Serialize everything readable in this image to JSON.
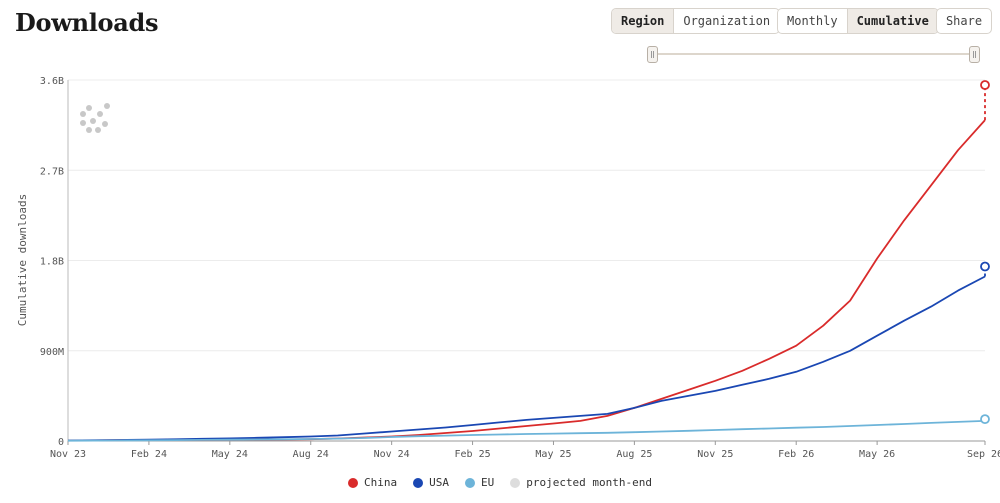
{
  "header": {
    "title": "Downloads"
  },
  "controls": {
    "group_by": [
      {
        "label": "Region",
        "active": true
      },
      {
        "label": "Organization",
        "active": false
      }
    ],
    "mode": [
      {
        "label": "Monthly",
        "active": false
      },
      {
        "label": "Cumulative",
        "active": true
      }
    ],
    "share_label": "Share"
  },
  "range_slider": {
    "start": 0,
    "end": 1
  },
  "chart_data": {
    "type": "line",
    "title": "",
    "xlabel": "",
    "ylabel": "Cumulative downloads",
    "x_ticks": [
      "Nov 23",
      "Feb 24",
      "May 24",
      "Aug 24",
      "Nov 24",
      "Feb 25",
      "May 25",
      "Aug 25",
      "Nov 25",
      "Feb 26",
      "May 26",
      "Sep 26"
    ],
    "y_ticks": [
      "0",
      "900M",
      "1.8B",
      "2.7B",
      "3.6B"
    ],
    "y_tick_values": [
      0,
      900000000,
      1800000000,
      2700000000,
      3600000000
    ],
    "ylim": [
      0,
      3600000000
    ],
    "x_range": [
      "2023-11",
      "2026-09"
    ],
    "grid": true,
    "legend_position": "bottom",
    "x": [
      "2023-11",
      "2023-12",
      "2024-01",
      "2024-02",
      "2024-03",
      "2024-04",
      "2024-05",
      "2024-06",
      "2024-07",
      "2024-08",
      "2024-09",
      "2024-10",
      "2024-11",
      "2024-12",
      "2025-01",
      "2025-02",
      "2025-03",
      "2025-04",
      "2025-05",
      "2025-06",
      "2025-07",
      "2025-08",
      "2025-09",
      "2025-10",
      "2025-11",
      "2025-12",
      "2026-01",
      "2026-02",
      "2026-03",
      "2026-04",
      "2026-05",
      "2026-06",
      "2026-07",
      "2026-08",
      "2026-09"
    ],
    "series": [
      {
        "name": "China",
        "color": "#d92b2b",
        "values": [
          5000000,
          6000000,
          8000000,
          10000000,
          11000000,
          12000000,
          13000000,
          14000000,
          15000000,
          18000000,
          25000000,
          35000000,
          45000000,
          60000000,
          80000000,
          100000000,
          125000000,
          150000000,
          175000000,
          200000000,
          250000000,
          330000000,
          420000000,
          510000000,
          600000000,
          700000000,
          820000000,
          950000000,
          1150000000,
          1400000000,
          1820000000,
          2200000000,
          2550000000,
          2900000000,
          3200000000
        ],
        "projected": 3550000000
      },
      {
        "name": "USA",
        "color": "#1a47b3",
        "values": [
          5000000,
          7000000,
          10000000,
          13000000,
          17000000,
          22000000,
          26000000,
          32000000,
          38000000,
          45000000,
          55000000,
          75000000,
          95000000,
          115000000,
          135000000,
          160000000,
          185000000,
          210000000,
          230000000,
          250000000,
          270000000,
          330000000,
          400000000,
          450000000,
          500000000,
          560000000,
          620000000,
          690000000,
          790000000,
          900000000,
          1050000000,
          1200000000,
          1340000000,
          1500000000,
          1640000000
        ],
        "projected": 1740000000
      },
      {
        "name": "EU",
        "color": "#6db4d9",
        "values": [
          3000000,
          4000000,
          5000000,
          7000000,
          9000000,
          11000000,
          13000000,
          15000000,
          17000000,
          20000000,
          24000000,
          30000000,
          40000000,
          48000000,
          54000000,
          60000000,
          65000000,
          70000000,
          74000000,
          78000000,
          82000000,
          88000000,
          95000000,
          102000000,
          110000000,
          118000000,
          125000000,
          133000000,
          140000000,
          150000000,
          160000000,
          170000000,
          180000000,
          190000000,
          200000000
        ],
        "projected": 218000000
      }
    ],
    "projected_label": "projected month-end",
    "projected_color": "#dddddd"
  }
}
